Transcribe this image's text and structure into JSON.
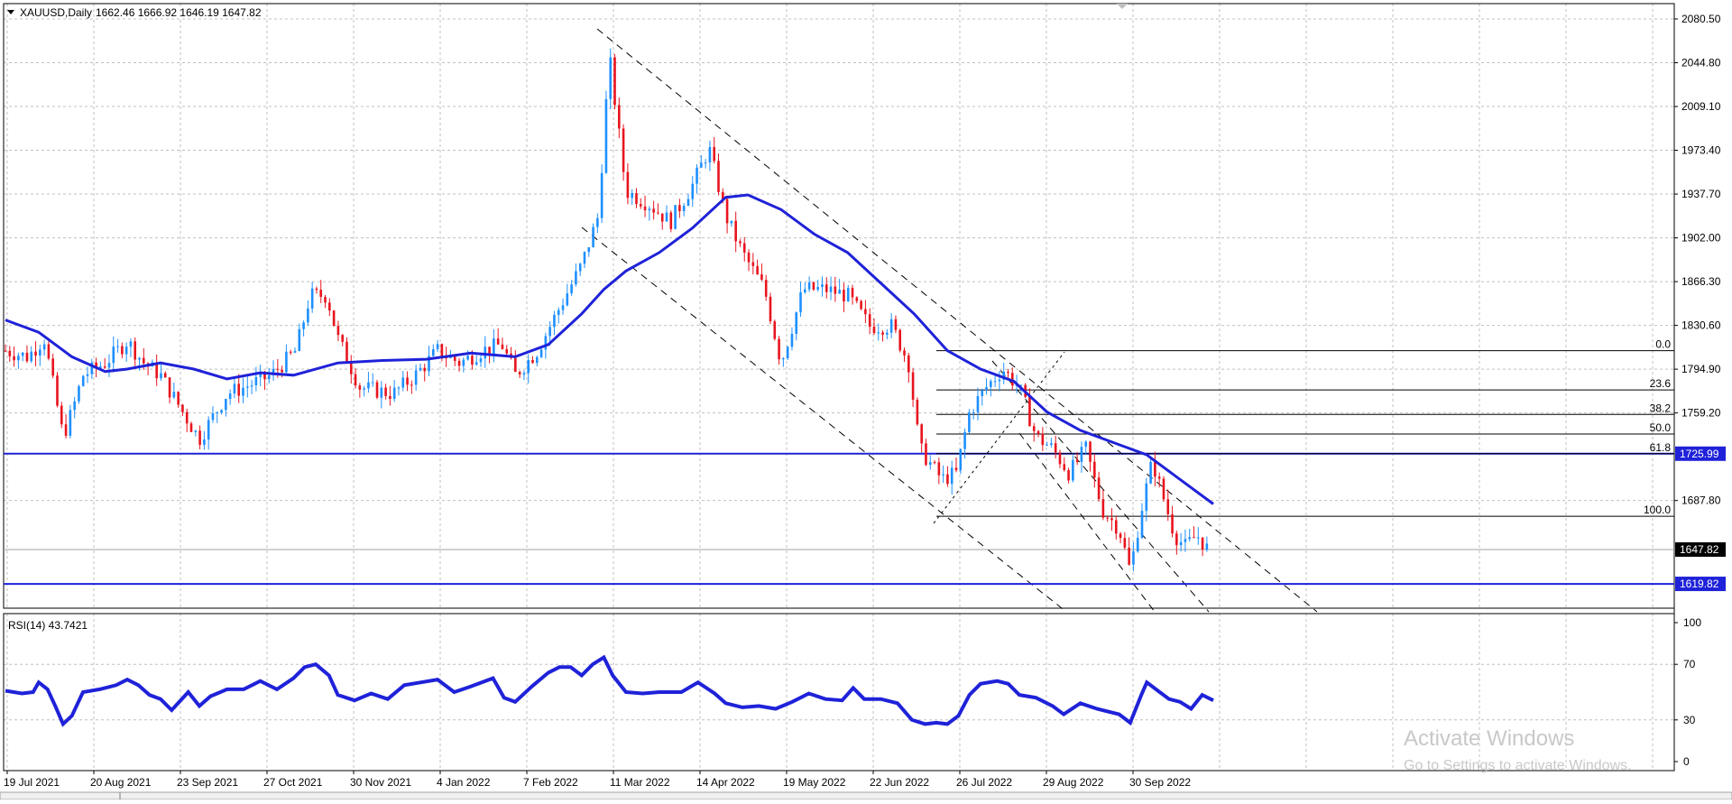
{
  "header": {
    "symbol": "XAUUSD,Daily",
    "ohlc": "1662.46 1666.92 1646.19 1647.82"
  },
  "rsi_header": "RSI(14) 43.7421",
  "watermark": {
    "line1": "Activate Windows",
    "line2": "Go to Settings to activate Windows."
  },
  "colors": {
    "bull": "#1e90ff",
    "bear": "#e8141e",
    "ma": "#1f22d8",
    "support": "#1f22d8",
    "rsi": "#1f22d8",
    "grid": "#c0c0c0",
    "price_tag_bg": "#000000",
    "level_tag_bg": "#1f22d8"
  },
  "chart_data": [
    {
      "type": "candlestick",
      "title": "",
      "x_axis_labels": [
        "19 Jul 2021",
        "20 Aug 2021",
        "23 Sep 2021",
        "27 Oct 2021",
        "30 Nov 2021",
        "4 Jan 2022",
        "7 Feb 2022",
        "11 Mar 2022",
        "14 Apr 2022",
        "19 May 2022",
        "22 Jun 2022",
        "26 Jul 2022",
        "29 Aug 2022",
        "30 Sep 2022"
      ],
      "y_ticks": [
        2080.5,
        2044.8,
        2009.1,
        1973.4,
        1937.7,
        1902.0,
        1866.3,
        1830.6,
        1794.9,
        1759.2,
        1687.8
      ],
      "ylim": [
        1600.0,
        2093.0
      ],
      "grid": true,
      "current_price": 1647.82,
      "price_levels": [
        1725.99,
        1619.82
      ],
      "fib_levels": [
        {
          "label": "0.0",
          "price": 1810.0
        },
        {
          "label": "23.6",
          "price": 1778.0
        },
        {
          "label": "38.2",
          "price": 1758.0
        },
        {
          "label": "50.0",
          "price": 1742.0
        },
        {
          "label": "61.8",
          "price": 1725.99
        },
        {
          "label": "100.0",
          "price": 1675.0
        }
      ],
      "ma_points": [
        [
          0,
          1835
        ],
        [
          30,
          1825
        ],
        [
          60,
          1805
        ],
        [
          90,
          1793
        ],
        [
          110,
          1795
        ],
        [
          140,
          1800
        ],
        [
          170,
          1795
        ],
        [
          200,
          1787
        ],
        [
          230,
          1792
        ],
        [
          260,
          1790
        ],
        [
          300,
          1800
        ],
        [
          340,
          1802
        ],
        [
          380,
          1803
        ],
        [
          420,
          1808
        ],
        [
          460,
          1805
        ],
        [
          490,
          1815
        ],
        [
          520,
          1840
        ],
        [
          540,
          1860
        ],
        [
          560,
          1875
        ],
        [
          590,
          1890
        ],
        [
          620,
          1910
        ],
        [
          650,
          1935
        ],
        [
          670,
          1937
        ],
        [
          700,
          1925
        ],
        [
          730,
          1905
        ],
        [
          760,
          1890
        ],
        [
          790,
          1865
        ],
        [
          820,
          1840
        ],
        [
          850,
          1810
        ],
        [
          880,
          1795
        ],
        [
          910,
          1785
        ],
        [
          940,
          1760
        ],
        [
          970,
          1745
        ],
        [
          1000,
          1735
        ],
        [
          1030,
          1725
        ],
        [
          1060,
          1705
        ],
        [
          1090,
          1685
        ]
      ],
      "candle_anchors": [
        [
          0,
          1810
        ],
        [
          20,
          1805
        ],
        [
          35,
          1820
        ],
        [
          52,
          1740
        ],
        [
          60,
          1760
        ],
        [
          70,
          1790
        ],
        [
          90,
          1800
        ],
        [
          110,
          1818
        ],
        [
          125,
          1800
        ],
        [
          140,
          1790
        ],
        [
          160,
          1760
        ],
        [
          175,
          1738
        ],
        [
          190,
          1760
        ],
        [
          200,
          1775
        ],
        [
          215,
          1780
        ],
        [
          240,
          1790
        ],
        [
          262,
          1810
        ],
        [
          275,
          1855
        ],
        [
          290,
          1855
        ],
        [
          300,
          1820
        ],
        [
          320,
          1780
        ],
        [
          350,
          1775
        ],
        [
          370,
          1790
        ],
        [
          390,
          1810
        ],
        [
          410,
          1800
        ],
        [
          430,
          1810
        ],
        [
          448,
          1815
        ],
        [
          460,
          1790
        ],
        [
          480,
          1810
        ],
        [
          500,
          1845
        ],
        [
          520,
          1880
        ],
        [
          535,
          1920
        ],
        [
          545,
          2050
        ],
        [
          560,
          1940
        ],
        [
          580,
          1930
        ],
        [
          600,
          1915
        ],
        [
          620,
          1945
        ],
        [
          635,
          1975
        ],
        [
          650,
          1920
        ],
        [
          665,
          1890
        ],
        [
          685,
          1860
        ],
        [
          700,
          1800
        ],
        [
          720,
          1860
        ],
        [
          740,
          1860
        ],
        [
          760,
          1855
        ],
        [
          780,
          1830
        ],
        [
          800,
          1830
        ],
        [
          815,
          1800
        ],
        [
          825,
          1730
        ],
        [
          845,
          1705
        ],
        [
          858,
          1710
        ],
        [
          870,
          1760
        ],
        [
          885,
          1780
        ],
        [
          900,
          1795
        ],
        [
          915,
          1780
        ],
        [
          930,
          1740
        ],
        [
          945,
          1730
        ],
        [
          960,
          1710
        ],
        [
          975,
          1730
        ],
        [
          990,
          1680
        ],
        [
          1005,
          1665
        ],
        [
          1015,
          1630
        ],
        [
          1025,
          1680
        ],
        [
          1035,
          1720
        ],
        [
          1045,
          1690
        ],
        [
          1055,
          1660
        ],
        [
          1065,
          1650
        ],
        [
          1075,
          1660
        ],
        [
          1085,
          1648
        ]
      ]
    },
    {
      "type": "line",
      "title": "",
      "y_ticks": [
        100,
        70,
        30,
        0
      ],
      "ylim": [
        0,
        100
      ],
      "series": [
        {
          "name": "",
          "points": [
            [
              0,
              51
            ],
            [
              15,
              49
            ],
            [
              25,
              50
            ],
            [
              30,
              57
            ],
            [
              38,
              52
            ],
            [
              45,
              40
            ],
            [
              52,
              27
            ],
            [
              60,
              33
            ],
            [
              70,
              50
            ],
            [
              85,
              52
            ],
            [
              100,
              55
            ],
            [
              110,
              59
            ],
            [
              120,
              55
            ],
            [
              130,
              48
            ],
            [
              140,
              45
            ],
            [
              150,
              37
            ],
            [
              165,
              50
            ],
            [
              175,
              40
            ],
            [
              185,
              47
            ],
            [
              200,
              52
            ],
            [
              215,
              52
            ],
            [
              230,
              58
            ],
            [
              245,
              52
            ],
            [
              260,
              60
            ],
            [
              270,
              68
            ],
            [
              280,
              70
            ],
            [
              292,
              62
            ],
            [
              300,
              48
            ],
            [
              315,
              44
            ],
            [
              330,
              49
            ],
            [
              345,
              45
            ],
            [
              360,
              55
            ],
            [
              375,
              57
            ],
            [
              390,
              59
            ],
            [
              405,
              50
            ],
            [
              420,
              54
            ],
            [
              440,
              60
            ],
            [
              450,
              46
            ],
            [
              460,
              43
            ],
            [
              475,
              54
            ],
            [
              490,
              64
            ],
            [
              500,
              68
            ],
            [
              510,
              68
            ],
            [
              520,
              62
            ],
            [
              530,
              70
            ],
            [
              540,
              75
            ],
            [
              548,
              62
            ],
            [
              560,
              50
            ],
            [
              575,
              49
            ],
            [
              590,
              50
            ],
            [
              610,
              50
            ],
            [
              625,
              57
            ],
            [
              640,
              49
            ],
            [
              650,
              42
            ],
            [
              665,
              39
            ],
            [
              680,
              40
            ],
            [
              695,
              38
            ],
            [
              710,
              43
            ],
            [
              725,
              49
            ],
            [
              740,
              45
            ],
            [
              755,
              44
            ],
            [
              765,
              53
            ],
            [
              775,
              45
            ],
            [
              790,
              45
            ],
            [
              805,
              42
            ],
            [
              818,
              30
            ],
            [
              830,
              27
            ],
            [
              840,
              28
            ],
            [
              850,
              27
            ],
            [
              860,
              33
            ],
            [
              870,
              48
            ],
            [
              880,
              56
            ],
            [
              895,
              58
            ],
            [
              905,
              56
            ],
            [
              915,
              48
            ],
            [
              930,
              46
            ],
            [
              945,
              40
            ],
            [
              955,
              34
            ],
            [
              970,
              42
            ],
            [
              985,
              38
            ],
            [
              995,
              36
            ],
            [
              1005,
              34
            ],
            [
              1015,
              28
            ],
            [
              1025,
              48
            ],
            [
              1030,
              57
            ],
            [
              1040,
              51
            ],
            [
              1050,
              45
            ],
            [
              1060,
              43
            ],
            [
              1070,
              38
            ],
            [
              1080,
              48
            ],
            [
              1090,
              44
            ]
          ]
        }
      ]
    }
  ]
}
